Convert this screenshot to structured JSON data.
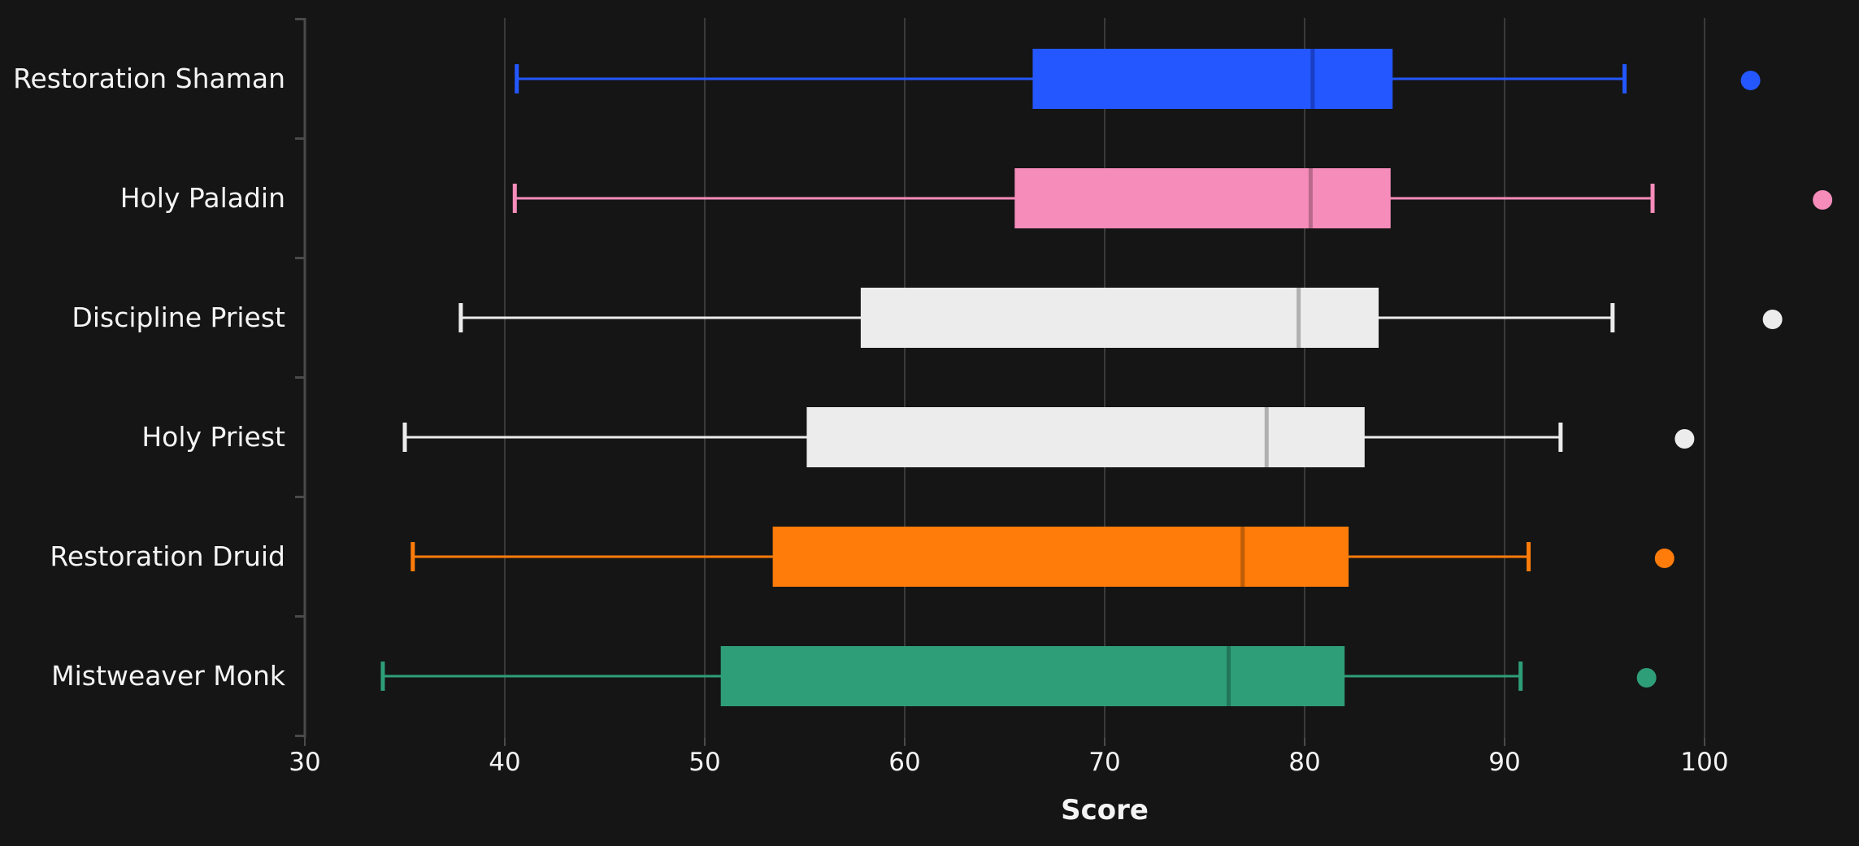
{
  "chart_data": {
    "type": "box",
    "orientation": "horizontal",
    "title": "",
    "xlabel": "Score",
    "ylabel": "",
    "xlim": [
      30,
      105
    ],
    "xticks": [
      30,
      40,
      50,
      60,
      70,
      80,
      90,
      100
    ],
    "grid": "vertical",
    "legend": "none",
    "background": "#151515",
    "series": [
      {
        "name": "Restoration Shaman",
        "color": "#2457ff",
        "median_color": "#1a3fc4",
        "whisker_low": 40.6,
        "q1": 66.4,
        "median": 80.4,
        "q3": 84.4,
        "whisker_high": 96.0,
        "marker": 102.3
      },
      {
        "name": "Holy Paladin",
        "color": "#f58cba",
        "median_color": "#b8698c",
        "whisker_low": 40.5,
        "q1": 65.5,
        "median": 80.3,
        "q3": 84.3,
        "whisker_high": 97.4,
        "marker": 105.9
      },
      {
        "name": "Discipline Priest",
        "color": "#ececec",
        "median_color": "#b0b0b0",
        "whisker_low": 37.8,
        "q1": 57.8,
        "median": 79.7,
        "q3": 83.7,
        "whisker_high": 95.4,
        "marker": 103.4
      },
      {
        "name": "Holy Priest",
        "color": "#ececec",
        "median_color": "#b0b0b0",
        "whisker_low": 35.0,
        "q1": 55.1,
        "median": 78.1,
        "q3": 83.0,
        "whisker_high": 92.8,
        "marker": 99.0
      },
      {
        "name": "Restoration Druid",
        "color": "#ff7c0a",
        "median_color": "#bf5d08",
        "whisker_low": 35.4,
        "q1": 53.4,
        "median": 76.9,
        "q3": 82.2,
        "whisker_high": 91.2,
        "marker": 98.0
      },
      {
        "name": "Mistweaver Monk",
        "color": "#2e9e78",
        "median_color": "#22765a",
        "whisker_low": 33.9,
        "q1": 50.8,
        "median": 76.2,
        "q3": 82.0,
        "whisker_high": 90.8,
        "marker": 97.1
      }
    ]
  }
}
